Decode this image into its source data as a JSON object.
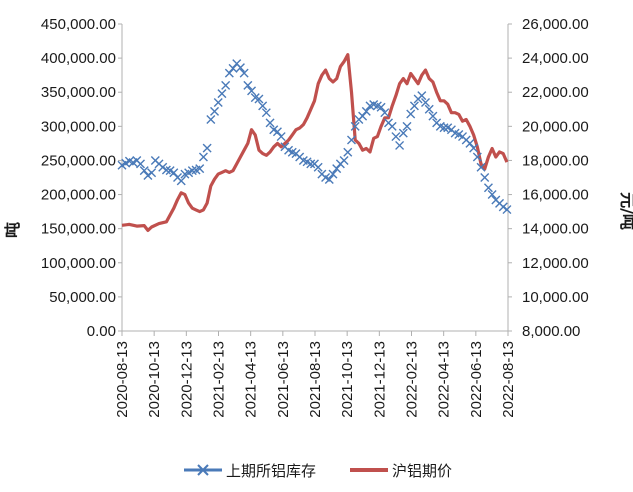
{
  "chart_data": {
    "type": "line",
    "title": "",
    "xlabel": "",
    "ylabel_left": "吨",
    "ylabel_right": "元/吨",
    "x_range": [
      "2020-08-13",
      "2022-08-13"
    ],
    "ylim_left": [
      0,
      450000
    ],
    "ylim_right": [
      8000,
      26000
    ],
    "left_ticks": [
      "0.00",
      "50,000.00",
      "100,000.00",
      "150,000.00",
      "200,000.00",
      "250,000.00",
      "300,000.00",
      "350,000.00",
      "400,000.00",
      "450,000.00"
    ],
    "right_ticks": [
      "8,000.00",
      "10,000.00",
      "12,000.00",
      "14,000.00",
      "16,000.00",
      "18,000.00",
      "20,000.00",
      "22,000.00",
      "24,000.00",
      "26,000.00"
    ],
    "x_ticks": [
      "2020-08-13",
      "2020-10-13",
      "2020-12-13",
      "2021-02-13",
      "2021-04-13",
      "2021-06-13",
      "2021-08-13",
      "2021-10-13",
      "2021-12-13",
      "2022-02-13",
      "2022-04-13",
      "2022-06-13",
      "2022-08-13"
    ],
    "grid": false,
    "legend_position": "bottom",
    "series": [
      {
        "name": "上期所铝库存",
        "axis": "left",
        "marker": "x",
        "color": "#4a7ab8",
        "points": [
          [
            "2020-08-13",
            243000
          ],
          [
            "2020-08-20",
            246000
          ],
          [
            "2020-08-27",
            249000
          ],
          [
            "2020-09-03",
            247000
          ],
          [
            "2020-09-10",
            250000
          ],
          [
            "2020-09-17",
            245000
          ],
          [
            "2020-09-24",
            235000
          ],
          [
            "2020-10-01",
            228000
          ],
          [
            "2020-10-08",
            232000
          ],
          [
            "2020-10-15",
            250000
          ],
          [
            "2020-10-22",
            245000
          ],
          [
            "2020-10-29",
            240000
          ],
          [
            "2020-11-05",
            236000
          ],
          [
            "2020-11-12",
            235000
          ],
          [
            "2020-11-19",
            232000
          ],
          [
            "2020-11-26",
            225000
          ],
          [
            "2020-12-03",
            220000
          ],
          [
            "2020-12-10",
            230000
          ],
          [
            "2020-12-17",
            232000
          ],
          [
            "2020-12-24",
            235000
          ],
          [
            "2020-12-31",
            236000
          ],
          [
            "2021-01-07",
            238000
          ],
          [
            "2021-01-14",
            255000
          ],
          [
            "2021-01-21",
            268000
          ],
          [
            "2021-01-28",
            310000
          ],
          [
            "2021-02-04",
            322000
          ],
          [
            "2021-02-11",
            335000
          ],
          [
            "2021-02-18",
            348000
          ],
          [
            "2021-02-25",
            360000
          ],
          [
            "2021-03-04",
            378000
          ],
          [
            "2021-03-11",
            385000
          ],
          [
            "2021-03-18",
            392000
          ],
          [
            "2021-03-25",
            386000
          ],
          [
            "2021-04-01",
            378000
          ],
          [
            "2021-04-08",
            360000
          ],
          [
            "2021-04-15",
            352000
          ],
          [
            "2021-04-22",
            342000
          ],
          [
            "2021-04-29",
            340000
          ],
          [
            "2021-05-06",
            330000
          ],
          [
            "2021-05-13",
            320000
          ],
          [
            "2021-05-20",
            305000
          ],
          [
            "2021-05-27",
            295000
          ],
          [
            "2021-06-03",
            292000
          ],
          [
            "2021-06-10",
            285000
          ],
          [
            "2021-06-17",
            270000
          ],
          [
            "2021-06-24",
            265000
          ],
          [
            "2021-07-01",
            262000
          ],
          [
            "2021-07-08",
            260000
          ],
          [
            "2021-07-15",
            255000
          ],
          [
            "2021-07-22",
            250000
          ],
          [
            "2021-07-29",
            248000
          ],
          [
            "2021-08-05",
            245000
          ],
          [
            "2021-08-12",
            245000
          ],
          [
            "2021-08-19",
            240000
          ],
          [
            "2021-08-26",
            230000
          ],
          [
            "2021-09-02",
            225000
          ],
          [
            "2021-09-09",
            222000
          ],
          [
            "2021-09-16",
            230000
          ],
          [
            "2021-09-23",
            238000
          ],
          [
            "2021-09-30",
            245000
          ],
          [
            "2021-10-07",
            250000
          ],
          [
            "2021-10-14",
            262000
          ],
          [
            "2021-10-21",
            280000
          ],
          [
            "2021-10-28",
            300000
          ],
          [
            "2021-11-04",
            310000
          ],
          [
            "2021-11-11",
            315000
          ],
          [
            "2021-11-18",
            322000
          ],
          [
            "2021-11-25",
            330000
          ],
          [
            "2021-12-02",
            332000
          ],
          [
            "2021-12-09",
            330000
          ],
          [
            "2021-12-16",
            328000
          ],
          [
            "2021-12-23",
            320000
          ],
          [
            "2021-12-30",
            305000
          ],
          [
            "2022-01-06",
            300000
          ],
          [
            "2022-01-13",
            285000
          ],
          [
            "2022-01-20",
            272000
          ],
          [
            "2022-01-27",
            290000
          ],
          [
            "2022-02-03",
            300000
          ],
          [
            "2022-02-10",
            318000
          ],
          [
            "2022-02-17",
            330000
          ],
          [
            "2022-02-24",
            340000
          ],
          [
            "2022-03-03",
            345000
          ],
          [
            "2022-03-10",
            335000
          ],
          [
            "2022-03-17",
            325000
          ],
          [
            "2022-03-24",
            315000
          ],
          [
            "2022-03-31",
            305000
          ],
          [
            "2022-04-07",
            300000
          ],
          [
            "2022-04-14",
            298000
          ],
          [
            "2022-04-21",
            298000
          ],
          [
            "2022-04-28",
            295000
          ],
          [
            "2022-05-05",
            290000
          ],
          [
            "2022-05-12",
            288000
          ],
          [
            "2022-05-19",
            285000
          ],
          [
            "2022-05-26",
            280000
          ],
          [
            "2022-06-02",
            275000
          ],
          [
            "2022-06-09",
            268000
          ],
          [
            "2022-06-16",
            255000
          ],
          [
            "2022-06-23",
            240000
          ],
          [
            "2022-06-30",
            225000
          ],
          [
            "2022-07-07",
            210000
          ],
          [
            "2022-07-14",
            200000
          ],
          [
            "2022-07-21",
            192000
          ],
          [
            "2022-07-28",
            187000
          ],
          [
            "2022-08-04",
            182000
          ],
          [
            "2022-08-11",
            178000
          ]
        ]
      },
      {
        "name": "沪铝期价",
        "axis": "right",
        "color": "#c0504d",
        "points": [
          [
            "2020-08-13",
            14200
          ],
          [
            "2020-08-27",
            14250
          ],
          [
            "2020-09-10",
            14150
          ],
          [
            "2020-09-24",
            14180
          ],
          [
            "2020-10-01",
            13900
          ],
          [
            "2020-10-08",
            14100
          ],
          [
            "2020-10-22",
            14300
          ],
          [
            "2020-11-05",
            14400
          ],
          [
            "2020-11-19",
            15200
          ],
          [
            "2020-11-26",
            15700
          ],
          [
            "2020-12-03",
            16100
          ],
          [
            "2020-12-10",
            16000
          ],
          [
            "2020-12-17",
            15500
          ],
          [
            "2020-12-24",
            15200
          ],
          [
            "2020-12-31",
            15100
          ],
          [
            "2021-01-07",
            15000
          ],
          [
            "2021-01-14",
            15100
          ],
          [
            "2021-01-21",
            15500
          ],
          [
            "2021-01-28",
            16500
          ],
          [
            "2021-02-04",
            16900
          ],
          [
            "2021-02-11",
            17200
          ],
          [
            "2021-02-18",
            17300
          ],
          [
            "2021-02-25",
            17400
          ],
          [
            "2021-03-04",
            17300
          ],
          [
            "2021-03-11",
            17400
          ],
          [
            "2021-03-18",
            17800
          ],
          [
            "2021-03-25",
            18200
          ],
          [
            "2021-04-01",
            18600
          ],
          [
            "2021-04-08",
            19000
          ],
          [
            "2021-04-15",
            19800
          ],
          [
            "2021-04-22",
            19500
          ],
          [
            "2021-04-29",
            18600
          ],
          [
            "2021-05-06",
            18400
          ],
          [
            "2021-05-13",
            18300
          ],
          [
            "2021-05-20",
            18500
          ],
          [
            "2021-05-27",
            18800
          ],
          [
            "2021-06-03",
            19000
          ],
          [
            "2021-06-10",
            18800
          ],
          [
            "2021-06-17",
            19000
          ],
          [
            "2021-06-24",
            19200
          ],
          [
            "2021-07-01",
            19500
          ],
          [
            "2021-07-08",
            19800
          ],
          [
            "2021-07-15",
            19900
          ],
          [
            "2021-07-22",
            20100
          ],
          [
            "2021-07-29",
            20500
          ],
          [
            "2021-08-05",
            21000
          ],
          [
            "2021-08-12",
            21500
          ],
          [
            "2021-08-19",
            22500
          ],
          [
            "2021-08-26",
            23000
          ],
          [
            "2021-09-02",
            23300
          ],
          [
            "2021-09-09",
            22800
          ],
          [
            "2021-09-16",
            22600
          ],
          [
            "2021-09-23",
            22800
          ],
          [
            "2021-09-30",
            23500
          ],
          [
            "2021-10-07",
            23800
          ],
          [
            "2021-10-14",
            24200
          ],
          [
            "2021-10-21",
            22000
          ],
          [
            "2021-10-28",
            19200
          ],
          [
            "2021-11-04",
            19000
          ],
          [
            "2021-11-11",
            18600
          ],
          [
            "2021-11-18",
            18700
          ],
          [
            "2021-11-25",
            18500
          ],
          [
            "2021-12-02",
            19300
          ],
          [
            "2021-12-09",
            19400
          ],
          [
            "2021-12-16",
            20000
          ],
          [
            "2021-12-23",
            20500
          ],
          [
            "2021-12-30",
            20500
          ],
          [
            "2022-01-06",
            21200
          ],
          [
            "2022-01-13",
            21800
          ],
          [
            "2022-01-20",
            22500
          ],
          [
            "2022-01-27",
            22800
          ],
          [
            "2022-02-03",
            22500
          ],
          [
            "2022-02-10",
            23100
          ],
          [
            "2022-02-17",
            22800
          ],
          [
            "2022-02-24",
            22500
          ],
          [
            "2022-03-03",
            23000
          ],
          [
            "2022-03-10",
            23300
          ],
          [
            "2022-03-17",
            22800
          ],
          [
            "2022-03-24",
            22600
          ],
          [
            "2022-03-31",
            22000
          ],
          [
            "2022-04-07",
            21500
          ],
          [
            "2022-04-14",
            21500
          ],
          [
            "2022-04-21",
            21300
          ],
          [
            "2022-04-28",
            20800
          ],
          [
            "2022-05-05",
            20800
          ],
          [
            "2022-05-12",
            20700
          ],
          [
            "2022-05-19",
            20300
          ],
          [
            "2022-05-26",
            20400
          ],
          [
            "2022-06-02",
            20000
          ],
          [
            "2022-06-09",
            19500
          ],
          [
            "2022-06-16",
            18800
          ],
          [
            "2022-06-23",
            17800
          ],
          [
            "2022-06-30",
            17500
          ],
          [
            "2022-07-07",
            18200
          ],
          [
            "2022-07-14",
            18700
          ],
          [
            "2022-07-21",
            18200
          ],
          [
            "2022-07-28",
            18500
          ],
          [
            "2022-08-04",
            18400
          ],
          [
            "2022-08-11",
            17900
          ]
        ]
      }
    ]
  }
}
